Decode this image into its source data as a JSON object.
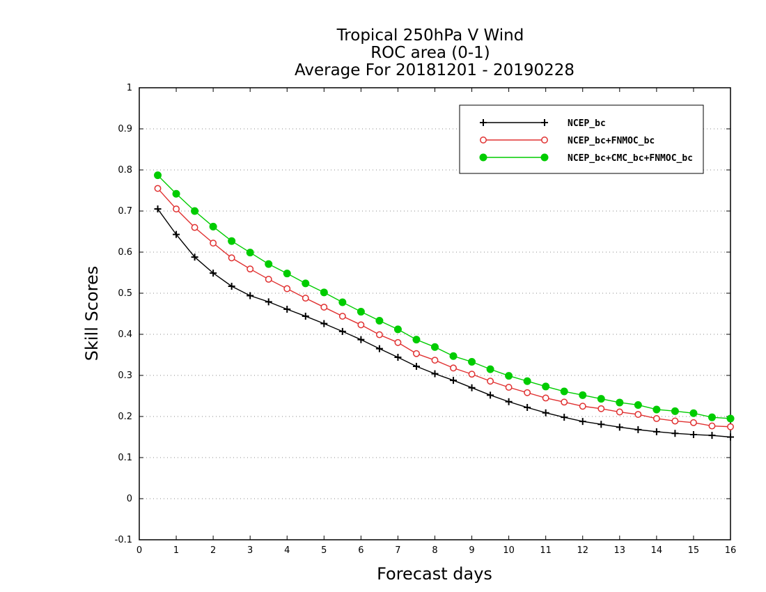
{
  "chart_data": {
    "type": "line",
    "title": [
      "Tropical 250hPa V Wind",
      "ROC area (0-1)",
      "Average For 20181201 - 20190228"
    ],
    "xlabel": "Forecast days",
    "ylabel": "Skill Scores",
    "xlim": [
      0,
      16
    ],
    "ylim": [
      -0.1,
      1
    ],
    "xticks": [
      "0",
      "1",
      "2",
      "3",
      "4",
      "5",
      "6",
      "7",
      "8",
      "9",
      "10",
      "11",
      "12",
      "13",
      "14",
      "15",
      "16"
    ],
    "yticks": [
      "-0.1",
      "0",
      "0.1",
      "0.2",
      "0.3",
      "0.4",
      "0.5",
      "0.6",
      "0.7",
      "0.8",
      "0.9",
      "1"
    ],
    "grid": true,
    "legend_position": "top-right",
    "x": [
      0.5,
      1,
      1.5,
      2,
      2.5,
      3,
      3.5,
      4,
      4.5,
      5,
      5.5,
      6,
      6.5,
      7,
      7.5,
      8,
      8.5,
      9,
      9.5,
      10,
      10.5,
      11,
      11.5,
      12,
      12.5,
      13,
      13.5,
      14,
      14.5,
      15,
      15.5,
      16
    ],
    "series": [
      {
        "name": "NCEP_bc",
        "color": "#000000",
        "marker": "plus",
        "values": [
          0.705,
          0.643,
          0.588,
          0.549,
          0.517,
          0.494,
          0.479,
          0.461,
          0.444,
          0.426,
          0.407,
          0.387,
          0.365,
          0.344,
          0.322,
          0.304,
          0.288,
          0.27,
          0.252,
          0.236,
          0.222,
          0.209,
          0.198,
          0.188,
          0.181,
          0.174,
          0.168,
          0.163,
          0.159,
          0.156,
          0.154,
          0.15
        ]
      },
      {
        "name": "NCEP_bc+FNMOC_bc",
        "color": "#e03030",
        "marker": "open-circle",
        "values": [
          0.755,
          0.705,
          0.66,
          0.622,
          0.586,
          0.559,
          0.534,
          0.511,
          0.488,
          0.466,
          0.444,
          0.423,
          0.399,
          0.38,
          0.353,
          0.337,
          0.318,
          0.303,
          0.286,
          0.271,
          0.258,
          0.245,
          0.235,
          0.225,
          0.219,
          0.211,
          0.205,
          0.195,
          0.189,
          0.185,
          0.177,
          0.175
        ]
      },
      {
        "name": "NCEP_bc+CMC_bc+FNMOC_bc",
        "color": "#00cc00",
        "marker": "filled-circle",
        "values": [
          0.787,
          0.742,
          0.7,
          0.662,
          0.627,
          0.599,
          0.571,
          0.548,
          0.524,
          0.502,
          0.478,
          0.455,
          0.433,
          0.412,
          0.387,
          0.369,
          0.347,
          0.333,
          0.315,
          0.299,
          0.286,
          0.273,
          0.261,
          0.252,
          0.243,
          0.234,
          0.228,
          0.217,
          0.213,
          0.208,
          0.198,
          0.195
        ]
      }
    ]
  }
}
